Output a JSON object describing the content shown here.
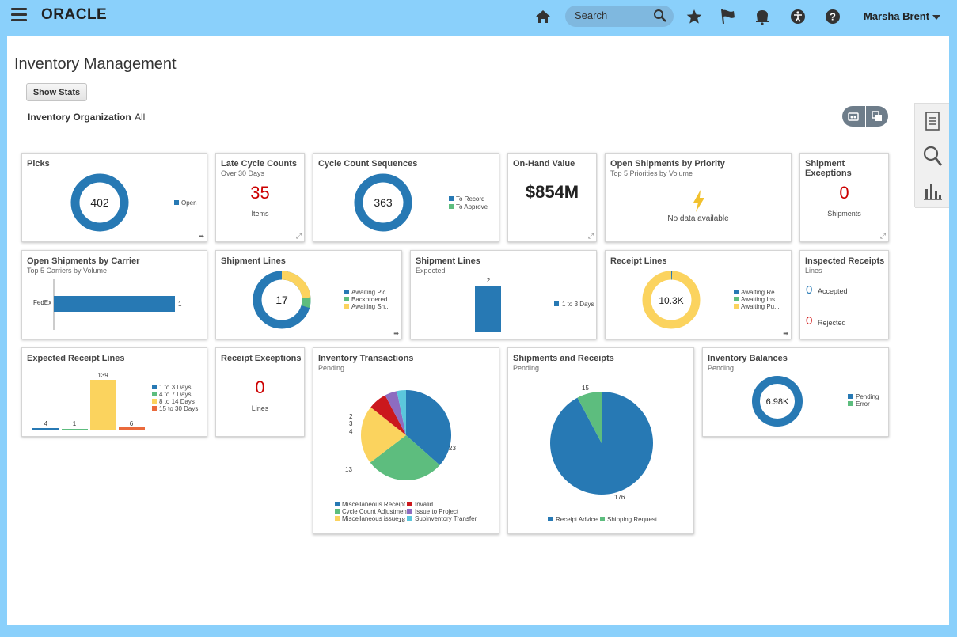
{
  "header": {
    "logo": "ORACLE",
    "search_placeholder": "Search",
    "user": "Marsha Brent"
  },
  "page": {
    "title": "Inventory Management",
    "show_stats": "Show Stats",
    "org_label": "Inventory Organization",
    "org_value": "All"
  },
  "colors": {
    "blue": "#2779b4",
    "green": "#5dbd7e",
    "yellow": "#fbd35e",
    "red": "#cb181d",
    "purple": "#8d6cc0",
    "cyan": "#5bc6dc",
    "orange": "#ea6a3c"
  },
  "tiles": {
    "picks": {
      "title": "Picks",
      "value": "402",
      "legend": [
        "Open"
      ]
    },
    "late_cycle": {
      "title": "Late Cycle Counts",
      "subtitle": "Over 30 Days",
      "value": "35",
      "unit": "Items"
    },
    "ccseq": {
      "title": "Cycle Count Sequences",
      "value": "363",
      "legend": [
        "To Record",
        "To Approve"
      ]
    },
    "onhand": {
      "title": "On-Hand Value",
      "value": "$854M"
    },
    "osp": {
      "title": "Open Shipments by Priority",
      "subtitle": "Top 5 Priorities by Volume",
      "nodata": "No data available"
    },
    "shipexc": {
      "title": "Shipment Exceptions",
      "value": "0",
      "unit": "Shipments"
    },
    "oscarrier": {
      "title": "Open Shipments by Carrier",
      "subtitle": "Top 5 Carriers by Volume",
      "category": "FedEx",
      "value": "1"
    },
    "shiplines": {
      "title": "Shipment Lines",
      "value": "17",
      "legend": [
        "Awaiting Pic...",
        "Backordered",
        "Awaiting Sh..."
      ]
    },
    "shiplines_exp": {
      "title": "Shipment Lines",
      "subtitle": "Expected",
      "value": "2",
      "legend": [
        "1 to 3 Days"
      ]
    },
    "receipt": {
      "title": "Receipt Lines",
      "value": "10.3K",
      "legend": [
        "Awaiting Re...",
        "Awaiting Ins...",
        "Awaiting Pu..."
      ]
    },
    "inspected": {
      "title": "Inspected Receipts",
      "subtitle": "Lines",
      "accepted_val": "0",
      "accepted": "Accepted",
      "rejected_val": "0",
      "rejected": "Rejected"
    },
    "expreceipt": {
      "title": "Expected Receipt Lines",
      "labels": [
        "4",
        "1",
        "139",
        "6"
      ],
      "legend": [
        "1 to 3 Days",
        "4 to 7 Days",
        "8 to 14 Days",
        "15 to 30 Days"
      ]
    },
    "recexc": {
      "title": "Receipt Exceptions",
      "value": "0",
      "unit": "Lines"
    },
    "invtrans": {
      "title": "Inventory Transactions",
      "subtitle": "Pending",
      "legend": [
        "Miscellaneous Receipt",
        "Invalid",
        "Cycle Count Adjustment",
        "Issue to Project",
        "Miscellaneous issue",
        "Subinventory Transfer"
      ]
    },
    "shiprec": {
      "title": "Shipments and Receipts",
      "subtitle": "Pending",
      "legend": [
        "Receipt Advice",
        "Shipping Request"
      ]
    },
    "invbal": {
      "title": "Inventory Balances",
      "subtitle": "Pending",
      "value": "6.98K",
      "legend": [
        "Pending",
        "Error"
      ]
    }
  },
  "chart_data": [
    {
      "type": "pie",
      "title": "Picks",
      "categories": [
        "Open"
      ],
      "values": [
        402
      ]
    },
    {
      "type": "pie",
      "title": "Cycle Count Sequences",
      "categories": [
        "To Record",
        "To Approve"
      ],
      "values": [
        363,
        0
      ]
    },
    {
      "type": "bar",
      "title": "Open Shipments by Carrier",
      "subtitle": "Top 5 Carriers by Volume",
      "categories": [
        "FedEx"
      ],
      "values": [
        1
      ]
    },
    {
      "type": "pie",
      "title": "Shipment Lines",
      "categories": [
        "Awaiting Pic...",
        "Backordered",
        "Awaiting Sh..."
      ],
      "values": [
        12,
        1,
        4
      ]
    },
    {
      "type": "bar",
      "title": "Shipment Lines",
      "subtitle": "Expected",
      "categories": [
        "1 to 3 Days"
      ],
      "values": [
        2
      ]
    },
    {
      "type": "pie",
      "title": "Receipt Lines",
      "categories": [
        "Awaiting Re...",
        "Awaiting Ins...",
        "Awaiting Pu..."
      ],
      "values": [
        50,
        0,
        10250
      ]
    },
    {
      "type": "bar",
      "title": "Expected Receipt Lines",
      "categories": [
        "1 to 3 Days",
        "4 to 7 Days",
        "8 to 14 Days",
        "15 to 30 Days"
      ],
      "values": [
        4,
        1,
        139,
        6
      ]
    },
    {
      "type": "pie",
      "title": "Inventory Transactions",
      "subtitle": "Pending",
      "categories": [
        "Miscellaneous Receipt",
        "Miscellaneous issue",
        "Cycle Count Adjustment",
        "Invalid",
        "Issue to Project",
        "Subinventory Transfer"
      ],
      "values": [
        23,
        13,
        18,
        4,
        3,
        2
      ]
    },
    {
      "type": "pie",
      "title": "Shipments and Receipts",
      "subtitle": "Pending",
      "categories": [
        "Receipt Advice",
        "Shipping Request"
      ],
      "values": [
        176,
        15
      ]
    },
    {
      "type": "pie",
      "title": "Inventory Balances",
      "subtitle": "Pending",
      "categories": [
        "Pending",
        "Error"
      ],
      "values": [
        6980,
        0
      ]
    }
  ]
}
